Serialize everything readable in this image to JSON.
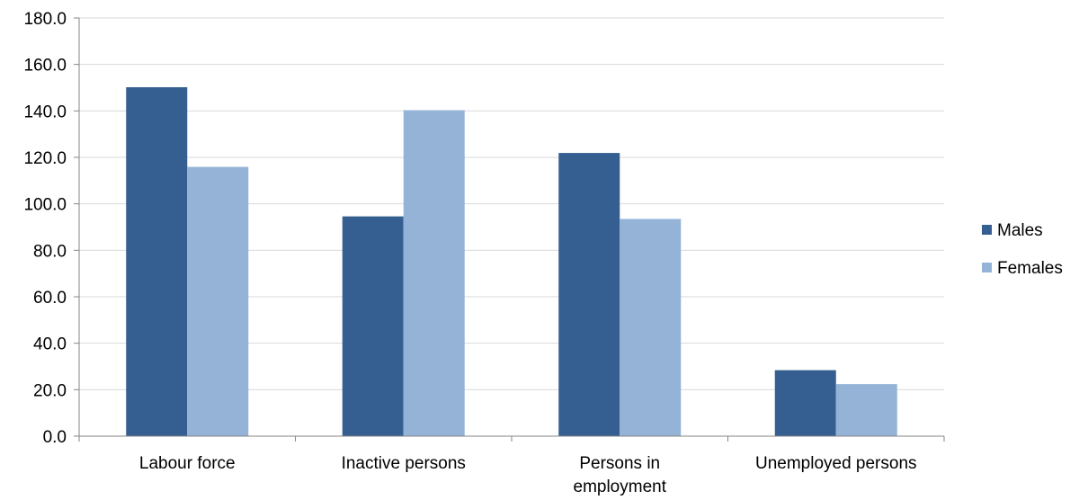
{
  "chart_data": {
    "type": "bar",
    "categories": [
      [
        "Labour force"
      ],
      [
        "Inactive persons"
      ],
      [
        "Persons in",
        "employment"
      ],
      [
        "Unemployed persons"
      ]
    ],
    "series": [
      {
        "name": "Males",
        "color": "#355f91",
        "values": [
          150.2,
          94.6,
          121.9,
          28.4
        ]
      },
      {
        "name": "Females",
        "color": "#95b3d7",
        "values": [
          115.9,
          140.3,
          93.5,
          22.4
        ]
      }
    ],
    "ylim": [
      0,
      180
    ],
    "yticks": [
      "0.0",
      "20.0",
      "40.0",
      "60.0",
      "80.0",
      "100.0",
      "120.0",
      "140.0",
      "160.0",
      "180.0"
    ],
    "grid": true,
    "legend_position": "right",
    "title": "",
    "xlabel": "",
    "ylabel": ""
  }
}
